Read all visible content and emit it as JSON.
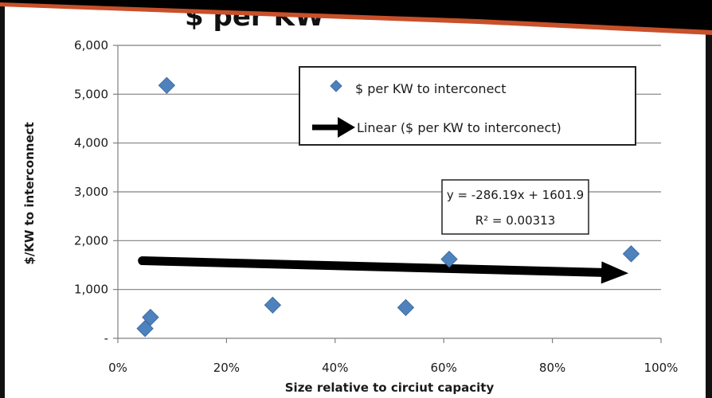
{
  "chart_data": {
    "type": "scatter",
    "title": "$ per KW",
    "xlabel": "Size relative to circiut capacity",
    "ylabel": "$/KW to interconnect",
    "xlim": [
      0,
      1
    ],
    "ylim": [
      0,
      6000
    ],
    "x_ticks": [
      "0%",
      "20%",
      "40%",
      "60%",
      "80%",
      "100%"
    ],
    "y_ticks": [
      "-",
      "1,000",
      "2,000",
      "3,000",
      "4,000",
      "5,000",
      "6,000"
    ],
    "grid": "horizontal",
    "legend_position": "top-right",
    "series": [
      {
        "name": "$ per KW to interconect",
        "marker": "diamond",
        "color": "#4f81bd",
        "points": [
          {
            "x": 0.05,
            "y": 200
          },
          {
            "x": 0.06,
            "y": 430
          },
          {
            "x": 0.09,
            "y": 5180
          },
          {
            "x": 0.285,
            "y": 680
          },
          {
            "x": 0.53,
            "y": 630
          },
          {
            "x": 0.61,
            "y": 1620
          },
          {
            "x": 0.945,
            "y": 1730
          }
        ]
      }
    ],
    "trendline": {
      "name": "Linear ($ per KW to interconect)",
      "slope": -286.19,
      "intercept": 1601.9,
      "x_range": [
        0.045,
        0.94
      ],
      "color": "#000000",
      "equation": "y = -286.19x + 1601.9",
      "r_squared": "R² = 0.00313"
    }
  },
  "colors": {
    "marker": "#4f81bd",
    "marker_stroke": "#3a6ea5",
    "grid": "#808080",
    "banner": "#c8502a"
  }
}
